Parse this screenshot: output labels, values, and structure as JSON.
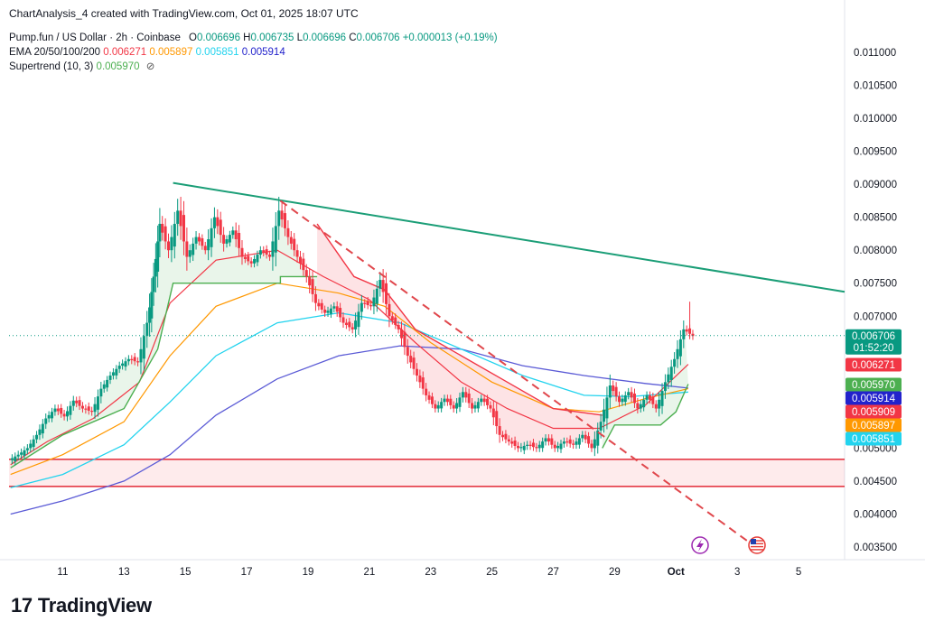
{
  "header": {
    "title": "ChartAnalysis_4 created with TradingView.com, Oct 01, 2025 18:07 UTC"
  },
  "legend": {
    "symbol": "Pump.fun / US Dollar · 2h · Coinbase",
    "o_label": "O",
    "o_value": "0.006696",
    "h_label": "H",
    "h_value": "0.006735",
    "l_label": "L",
    "l_value": "0.006696",
    "c_label": "C",
    "c_value": "0.006706",
    "change": "+0.000013 (+0.19%)",
    "ema_label": "EMA 20/50/100/200",
    "ema20": "0.006271",
    "ema50": "0.005897",
    "ema100": "0.005851",
    "ema200": "0.005914",
    "st_label": "Supertrend (10, 3)",
    "st_value": "0.005970",
    "st_icon": "⊘"
  },
  "brand": {
    "logo": "17",
    "name": "TradingView"
  },
  "colors": {
    "up": "#089981",
    "down": "#f23645",
    "ema20": "#f23645",
    "ema50": "#ff9800",
    "ema100": "#22d3ee",
    "ema200": "#5b5bd6",
    "st_up": "#4caf50",
    "st_down": "#f23645",
    "trendline": "#1b9e77",
    "support": "#e53945"
  },
  "chart_data": {
    "type": "candlestick",
    "x_ticks": [
      "11",
      "13",
      "15",
      "17",
      "19",
      "21",
      "23",
      "25",
      "27",
      "29",
      "Oct",
      "3",
      "5"
    ],
    "x_tick_days": [
      11,
      13,
      15,
      17,
      19,
      21,
      23,
      25,
      27,
      29,
      31,
      33,
      35
    ],
    "y_ticks": [
      "0.011000",
      "0.010500",
      "0.010000",
      "0.009500",
      "0.009000",
      "0.008500",
      "0.008000",
      "0.007500",
      "0.007000",
      "0.006500",
      "0.006000",
      "0.005500",
      "0.005000",
      "0.004500",
      "0.004000",
      "0.003500"
    ],
    "y_tick_values": [
      0.011,
      0.0105,
      0.01,
      0.0095,
      0.009,
      0.0085,
      0.008,
      0.0075,
      0.007,
      0.0065,
      0.006,
      0.0055,
      0.005,
      0.0045,
      0.004,
      0.0035
    ],
    "ylim": [
      0.00325,
      0.0113
    ],
    "xlim_days": [
      9.25,
      36.5
    ],
    "ohlc_close_path": [
      [
        9.3,
        0.00482
      ],
      [
        9.6,
        0.0049
      ],
      [
        9.9,
        0.005
      ],
      [
        10.2,
        0.0052
      ],
      [
        10.5,
        0.00545
      ],
      [
        10.8,
        0.0056
      ],
      [
        11.1,
        0.00548
      ],
      [
        11.4,
        0.00572
      ],
      [
        11.7,
        0.0056
      ],
      [
        12.0,
        0.00555
      ],
      [
        12.3,
        0.0059
      ],
      [
        12.6,
        0.0061
      ],
      [
        12.9,
        0.00625
      ],
      [
        13.2,
        0.00635
      ],
      [
        13.5,
        0.0063
      ],
      [
        13.8,
        0.0069
      ],
      [
        14.0,
        0.0076
      ],
      [
        14.2,
        0.0084
      ],
      [
        14.5,
        0.008
      ],
      [
        14.8,
        0.0086
      ],
      [
        15.1,
        0.0079
      ],
      [
        15.4,
        0.0082
      ],
      [
        15.7,
        0.008
      ],
      [
        16.0,
        0.0085
      ],
      [
        16.3,
        0.0081
      ],
      [
        16.6,
        0.0083
      ],
      [
        16.9,
        0.0079
      ],
      [
        17.2,
        0.0078
      ],
      [
        17.5,
        0.008
      ],
      [
        17.8,
        0.0079
      ],
      [
        18.1,
        0.0086
      ],
      [
        18.4,
        0.0082
      ],
      [
        18.7,
        0.0079
      ],
      [
        19.0,
        0.0076
      ],
      [
        19.3,
        0.0072
      ],
      [
        19.6,
        0.00705
      ],
      [
        19.9,
        0.00715
      ],
      [
        20.2,
        0.0069
      ],
      [
        20.5,
        0.0068
      ],
      [
        20.8,
        0.0072
      ],
      [
        21.1,
        0.00715
      ],
      [
        21.4,
        0.00755
      ],
      [
        21.7,
        0.007
      ],
      [
        22.0,
        0.0068
      ],
      [
        22.3,
        0.0064
      ],
      [
        22.6,
        0.0061
      ],
      [
        22.9,
        0.0058
      ],
      [
        23.2,
        0.0056
      ],
      [
        23.5,
        0.00575
      ],
      [
        23.8,
        0.0056
      ],
      [
        24.1,
        0.00585
      ],
      [
        24.4,
        0.0056
      ],
      [
        24.7,
        0.00575
      ],
      [
        25.0,
        0.0056
      ],
      [
        25.3,
        0.0052
      ],
      [
        25.6,
        0.0051
      ],
      [
        25.9,
        0.005
      ],
      [
        26.2,
        0.00505
      ],
      [
        26.5,
        0.005
      ],
      [
        26.8,
        0.00515
      ],
      [
        27.1,
        0.005
      ],
      [
        27.4,
        0.0051
      ],
      [
        27.7,
        0.00505
      ],
      [
        28.0,
        0.0052
      ],
      [
        28.3,
        0.005
      ],
      [
        28.6,
        0.0054
      ],
      [
        28.9,
        0.00595
      ],
      [
        29.2,
        0.0057
      ],
      [
        29.5,
        0.00585
      ],
      [
        29.8,
        0.0056
      ],
      [
        30.1,
        0.0058
      ],
      [
        30.4,
        0.0056
      ],
      [
        30.7,
        0.006
      ],
      [
        31.0,
        0.00635
      ],
      [
        31.3,
        0.0068
      ],
      [
        31.6,
        0.0067
      ]
    ],
    "ema20": [
      [
        9.3,
        0.00475
      ],
      [
        10.5,
        0.0051
      ],
      [
        12,
        0.00545
      ],
      [
        13.5,
        0.006
      ],
      [
        14.5,
        0.0072
      ],
      [
        16,
        0.00785
      ],
      [
        18,
        0.008
      ],
      [
        19.5,
        0.0076
      ],
      [
        21,
        0.00725
      ],
      [
        22.5,
        0.0066
      ],
      [
        24,
        0.006
      ],
      [
        25.5,
        0.0056
      ],
      [
        27,
        0.0053
      ],
      [
        28.5,
        0.0053
      ],
      [
        30,
        0.00565
      ],
      [
        31.4,
        0.00627
      ]
    ],
    "ema50": [
      [
        9.3,
        0.0046
      ],
      [
        11,
        0.0049
      ],
      [
        13,
        0.0054
      ],
      [
        14.5,
        0.0064
      ],
      [
        16,
        0.00715
      ],
      [
        18,
        0.0075
      ],
      [
        20,
        0.00735
      ],
      [
        21.5,
        0.00715
      ],
      [
        23,
        0.0066
      ],
      [
        25,
        0.006
      ],
      [
        27,
        0.0056
      ],
      [
        28.5,
        0.00555
      ],
      [
        30,
        0.00575
      ],
      [
        31.4,
        0.0059
      ]
    ],
    "ema100": [
      [
        9.3,
        0.0044
      ],
      [
        11,
        0.0046
      ],
      [
        13,
        0.00505
      ],
      [
        14.5,
        0.0057
      ],
      [
        16,
        0.0064
      ],
      [
        18,
        0.0069
      ],
      [
        20,
        0.00705
      ],
      [
        22,
        0.0069
      ],
      [
        24,
        0.0065
      ],
      [
        26,
        0.0061
      ],
      [
        28,
        0.0058
      ],
      [
        29.5,
        0.00578
      ],
      [
        31.4,
        0.00585
      ]
    ],
    "ema200": [
      [
        9.3,
        0.004
      ],
      [
        11,
        0.0042
      ],
      [
        13,
        0.0045
      ],
      [
        14.5,
        0.0049
      ],
      [
        16,
        0.0055
      ],
      [
        18,
        0.00605
      ],
      [
        20,
        0.0064
      ],
      [
        22,
        0.00655
      ],
      [
        24,
        0.0065
      ],
      [
        26,
        0.00625
      ],
      [
        28,
        0.0061
      ],
      [
        30,
        0.00598
      ],
      [
        31.4,
        0.00591
      ]
    ],
    "supertrend_up_1": [
      [
        9.3,
        0.0047
      ],
      [
        11,
        0.0052
      ],
      [
        13,
        0.0056
      ],
      [
        14.1,
        0.0065
      ],
      [
        14.6,
        0.0075
      ],
      [
        18.1,
        0.0075
      ],
      [
        18.1,
        0.0076
      ],
      [
        19.3,
        0.0076
      ]
    ],
    "supertrend_down": [
      [
        19.3,
        0.0084
      ],
      [
        20.5,
        0.0076
      ],
      [
        21.5,
        0.0074
      ],
      [
        22.5,
        0.0068
      ],
      [
        24,
        0.0064
      ],
      [
        25.5,
        0.006
      ],
      [
        27,
        0.0056
      ],
      [
        28.6,
        0.0055
      ]
    ],
    "supertrend_up_2": [
      [
        28.6,
        0.005
      ],
      [
        29.0,
        0.00535
      ],
      [
        30.5,
        0.00535
      ],
      [
        31.0,
        0.00555
      ],
      [
        31.4,
        0.00597
      ]
    ],
    "trendline": [
      [
        14.6,
        0.00902
      ],
      [
        36.5,
        0.00737
      ]
    ],
    "dashed_trendline": [
      [
        18.1,
        0.00875
      ],
      [
        33.6,
        0.0035
      ]
    ],
    "support_zone": [
      0.00442,
      0.00483
    ],
    "current_price": 0.006706,
    "price_tags": [
      {
        "value": "0.006706",
        "sub": "01:52:20",
        "color": "#089981",
        "y": 0.006706
      },
      {
        "value": "0.006271",
        "color": "#f23645",
        "y": 0.006271
      },
      {
        "value": "0.005970",
        "color": "#4caf50",
        "y": 0.00597
      },
      {
        "value": "0.005914",
        "color": "#2222cc",
        "y": 0.005914
      },
      {
        "value": "0.005909",
        "color": "#f23645",
        "y": 0.005909
      },
      {
        "value": "0.005897",
        "color": "#ff9800",
        "y": 0.005897
      },
      {
        "value": "0.005851",
        "color": "#22d3ee",
        "y": 0.005851
      }
    ],
    "event_icons": [
      "lightning-icon",
      "us-flag-icon"
    ]
  }
}
